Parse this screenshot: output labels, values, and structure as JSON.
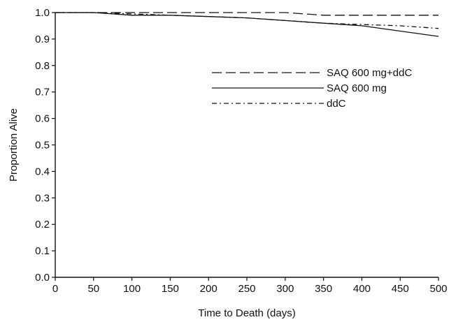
{
  "chart_data": {
    "type": "line",
    "title": "",
    "xlabel": "Time to Death (days)",
    "ylabel": "Proportion Alive",
    "xlim": [
      0,
      500
    ],
    "ylim": [
      0.0,
      1.0
    ],
    "x_ticks": [
      0,
      50,
      100,
      150,
      200,
      250,
      300,
      350,
      400,
      450,
      500
    ],
    "y_ticks": [
      "0.0",
      "0.1",
      "0.2",
      "0.3",
      "0.4",
      "0.5",
      "0.6",
      "0.7",
      "0.8",
      "0.9",
      "1.0"
    ],
    "grid": false,
    "legend_placement": "center-right",
    "series": [
      {
        "name": "SAQ 600 mg+ddC",
        "dash": "long-dash",
        "x": [
          0,
          60,
          100,
          200,
          300,
          350,
          500
        ],
        "y": [
          1.0,
          1.0,
          1.0,
          1.0,
          1.0,
          0.99,
          0.99
        ]
      },
      {
        "name": "SAQ 600 mg",
        "dash": "solid",
        "x": [
          0,
          50,
          100,
          150,
          200,
          250,
          300,
          350,
          400,
          450,
          500
        ],
        "y": [
          1.0,
          1.0,
          0.99,
          0.99,
          0.985,
          0.98,
          0.97,
          0.96,
          0.95,
          0.93,
          0.91
        ]
      },
      {
        "name": "ddC",
        "dash": "dash-dot",
        "x": [
          0,
          50,
          100,
          150,
          200,
          250,
          300,
          350,
          400,
          450,
          500
        ],
        "y": [
          1.0,
          1.0,
          0.995,
          0.99,
          0.985,
          0.98,
          0.97,
          0.96,
          0.955,
          0.95,
          0.94
        ]
      }
    ]
  }
}
